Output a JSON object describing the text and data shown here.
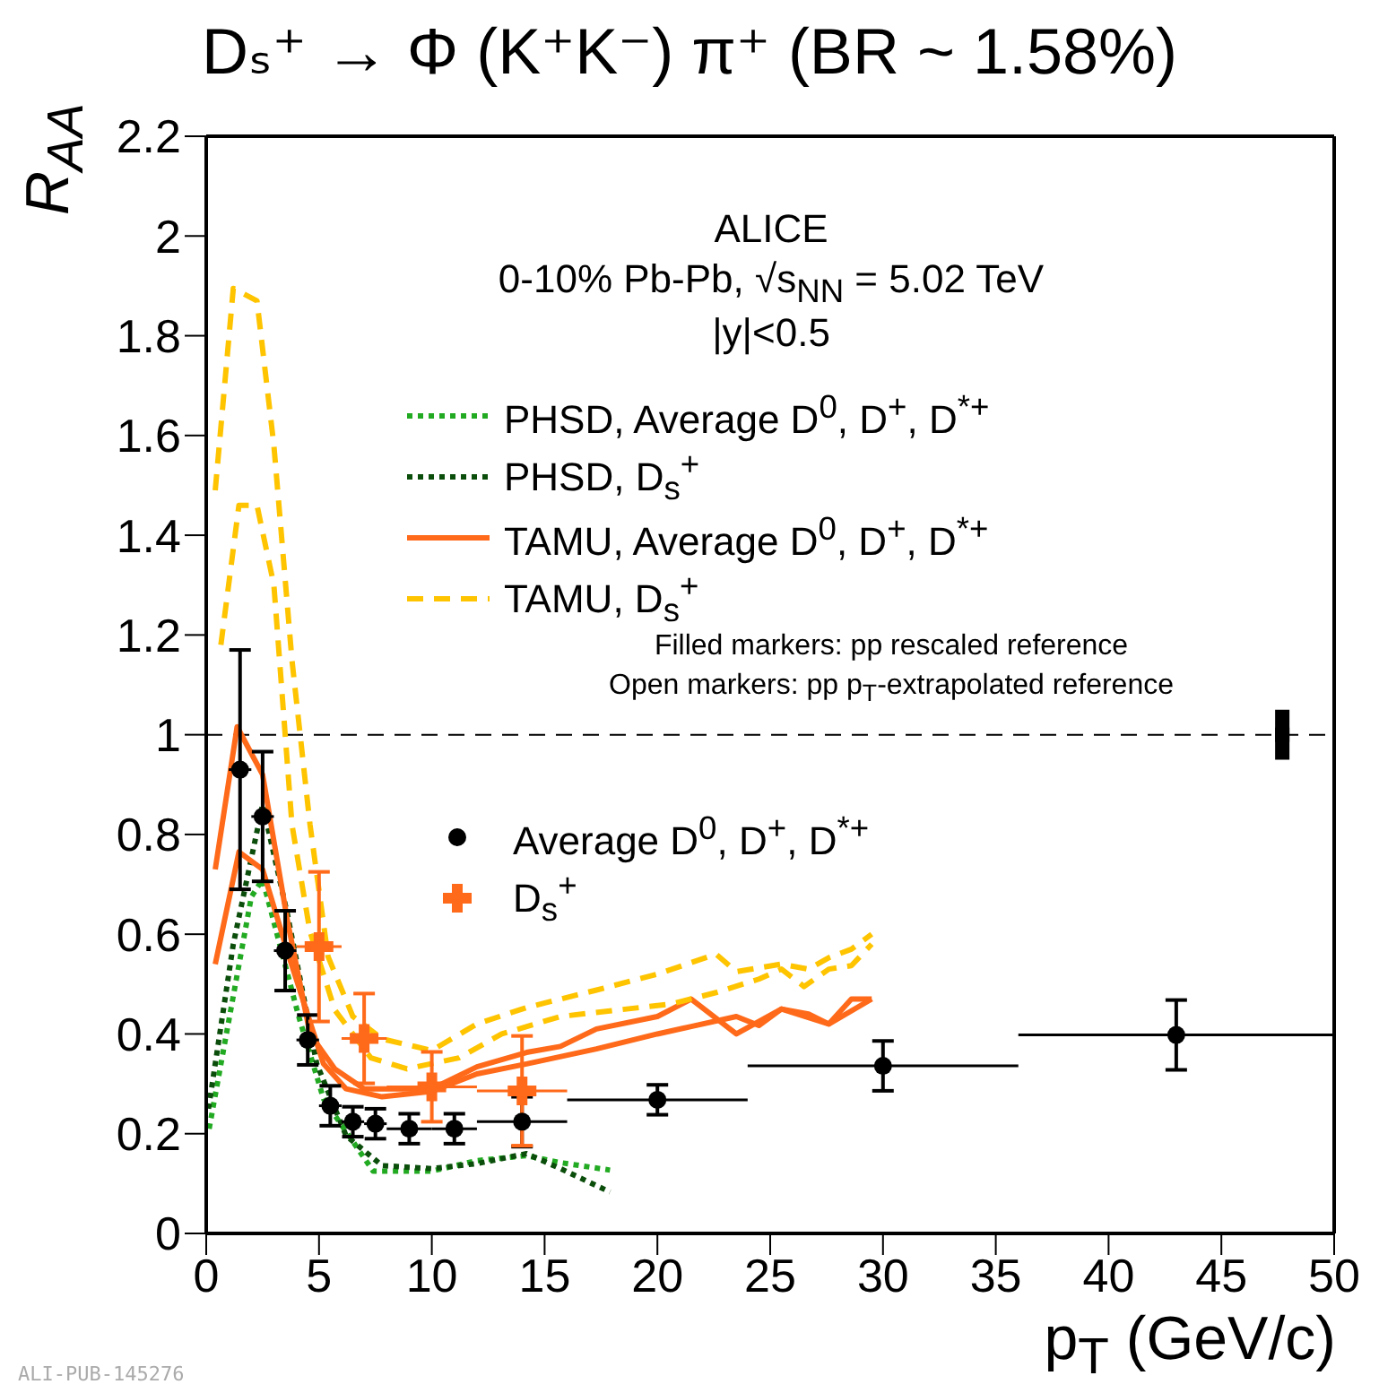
{
  "chart_data": {
    "type": "line",
    "title": "Dₛ⁺ → Φ (K⁺K⁻) π⁺ (BR ~ 1.58%)",
    "xlabel": "p$_{T}$ (GeV/c)",
    "ylabel": "R$_{AA}$",
    "xlim": [
      0,
      50
    ],
    "xticks": [
      0,
      5,
      10,
      15,
      20,
      25,
      30,
      35,
      40,
      45,
      50
    ],
    "ylim": [
      0,
      2.2
    ],
    "yticks": [
      0,
      0.2,
      0.4,
      0.6,
      0.8,
      1,
      1.2,
      1.4,
      1.6,
      1.8,
      2,
      2.2
    ],
    "grid": false,
    "legend": "top",
    "marker": "none",
    "ref_lines": [
      {
        "axis": "y",
        "value": 1,
        "line_style": "dashed",
        "color": "#000000"
      }
    ],
    "annotations": [
      "ALICE",
      "0-10% Pb-Pb, √s$_{NN}$ = 5.02 TeV",
      "|y|<0.5",
      "Filled markers: pp rescaled reference",
      "Open markers: pp p$_{T}$-extrapolated reference",
      "ALI-PUB-145276"
    ],
    "series": [
      {
        "name": "PHSD, Average D$^{0}$, D$^{+}$, D$^{*+}$",
        "line_style": "dotted",
        "color": "#22aa22",
        "x": [
          0.13,
          2.0,
          2.5,
          4.1,
          5.2,
          7.4,
          10,
          12,
          14.2,
          15.7,
          17.9
        ],
        "values": [
          0.21,
          0.675,
          0.71,
          0.435,
          0.27,
          0.125,
          0.125,
          0.146,
          0.156,
          0.142,
          0.127
        ]
      },
      {
        "name": "PHSD, D$_{s}$$^{+}$",
        "line_style": "dotted",
        "color": "#0b4d0b",
        "x": [
          0.1,
          1.2,
          2.5,
          3.6,
          4.9,
          6.2,
          7.8,
          10,
          12,
          14.2,
          15.7,
          17.9
        ],
        "values": [
          0.25,
          0.58,
          0.86,
          0.64,
          0.34,
          0.196,
          0.136,
          0.13,
          0.14,
          0.16,
          0.13,
          0.083
        ]
      },
      {
        "name": "TAMU, Average D$^{0}$, D$^{+}$, D$^{*+}$",
        "line_style": "solid",
        "color": "#ff6a1a",
        "x": [
          0.4,
          1.37,
          2.5,
          3.6,
          4.6,
          5.7,
          7,
          10,
          12,
          14.2,
          15.7,
          17.3,
          20,
          21.5,
          23.5,
          25.5,
          26.7,
          27.6,
          28.6,
          29.5
        ],
        "values": [
          0.73,
          1.016,
          0.92,
          0.627,
          0.4,
          0.33,
          0.29,
          0.29,
          0.334,
          0.363,
          0.375,
          0.41,
          0.435,
          0.47,
          0.4,
          0.45,
          0.44,
          0.42,
          0.47,
          0.47
        ]
      },
      {
        "line_style": "solid",
        "color": "#ff6a1a",
        "x": [
          0.4,
          1.45,
          2.5,
          3.6,
          5.2,
          6.2,
          7.8,
          10,
          12,
          14.2,
          17.3,
          20,
          21.5,
          23.5,
          24.5,
          25.5,
          27.6,
          29.5
        ],
        "values": [
          0.54,
          0.765,
          0.73,
          0.565,
          0.34,
          0.29,
          0.274,
          0.285,
          0.32,
          0.34,
          0.37,
          0.4,
          0.415,
          0.435,
          0.417,
          0.45,
          0.42,
          0.47
        ]
      },
      {
        "name": "TAMU, D$_{s}$$^{+}$",
        "line_style": "dashed",
        "color": "#ffc400",
        "x": [
          0.4,
          1.2,
          2.25,
          3.0,
          3.8,
          4.6,
          5.4,
          6.5,
          7.8,
          10,
          12,
          14.2,
          17.3,
          20,
          22.6,
          23.5,
          25.5,
          26.7,
          27.6,
          28.6,
          29.5
        ],
        "values": [
          1.49,
          1.895,
          1.87,
          1.58,
          1.15,
          0.82,
          0.555,
          0.435,
          0.39,
          0.367,
          0.42,
          0.453,
          0.488,
          0.52,
          0.56,
          0.525,
          0.54,
          0.53,
          0.553,
          0.57,
          0.6
        ]
      },
      {
        "line_style": "dashed",
        "color": "#ffc400",
        "x": [
          0.65,
          1.45,
          2.25,
          3.0,
          3.8,
          4.6,
          5.7,
          7.3,
          8.9,
          11.2,
          13.1,
          15.7,
          20.6,
          22.6,
          24.5,
          25.5,
          26.5,
          27.6,
          28.6,
          29.5
        ],
        "values": [
          1.18,
          1.46,
          1.46,
          1.3,
          0.82,
          0.605,
          0.448,
          0.352,
          0.33,
          0.352,
          0.4,
          0.435,
          0.46,
          0.483,
          0.51,
          0.53,
          0.495,
          0.53,
          0.537,
          0.58
        ]
      },
      {
        "name": "Average D$^{0}$, D$^{+}$, D$^{*+}$",
        "type": "scatter",
        "marker": "circle",
        "color": "#000000",
        "x": [
          1.5,
          2.5,
          3.5,
          4.5,
          5.5,
          6.5,
          7.5,
          9,
          11,
          14,
          20,
          30,
          43
        ],
        "values": [
          0.93,
          0.836,
          0.567,
          0.388,
          0.256,
          0.224,
          0.22,
          0.21,
          0.21,
          0.224,
          0.268,
          0.336,
          0.398
        ],
        "errors": [
          0.24,
          0.13,
          0.08,
          0.05,
          0.04,
          0.03,
          0.03,
          0.03,
          0.03,
          0.05,
          0.03,
          0.05,
          0.07
        ],
        "xerrors": [
          0.5,
          0.5,
          0.5,
          0.5,
          0.5,
          0.5,
          0.5,
          1,
          1,
          2,
          4,
          6,
          7
        ]
      },
      {
        "name": "D$_{s}$$^{+}$",
        "type": "scatter",
        "marker": "cross",
        "color": "#ff6a1a",
        "x": [
          5,
          7,
          10,
          14
        ],
        "values": [
          0.575,
          0.391,
          0.294,
          0.286
        ],
        "errors": [
          0.15,
          0.09,
          0.07,
          0.11
        ],
        "xerrors": [
          1,
          1,
          2,
          2
        ]
      },
      {
        "type": "scatter",
        "marker": "square",
        "color": "#000000",
        "x": [
          47.7
        ],
        "values": [
          1
        ],
        "errors": [
          0.05
        ]
      }
    ]
  }
}
